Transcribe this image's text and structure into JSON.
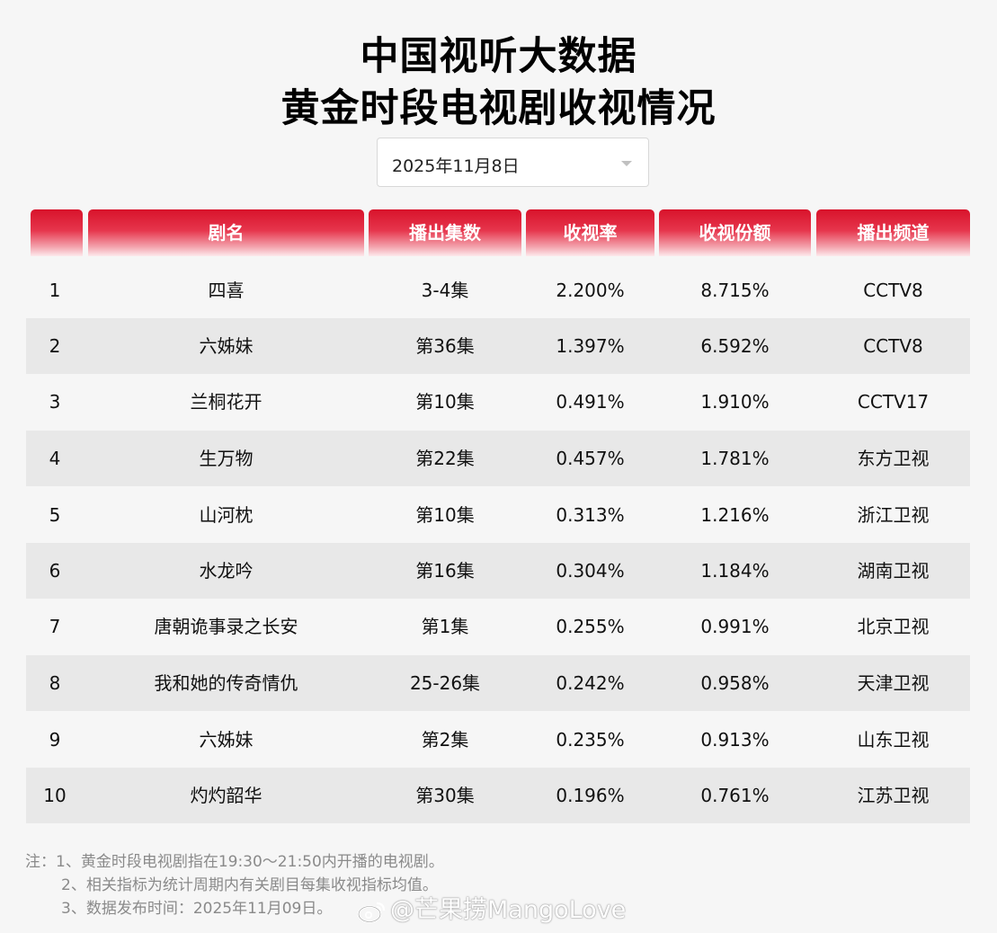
{
  "title": {
    "line1": "中国视听大数据",
    "line2": "黄金时段电视剧收视情况"
  },
  "date_select": {
    "value": "2025年11月8日"
  },
  "table": {
    "headers": [
      "",
      "剧名",
      "播出集数",
      "收视率",
      "收视份额",
      "播出频道"
    ],
    "rows": [
      {
        "rank": "1",
        "name": "四喜",
        "episodes": "3-4集",
        "rating": "2.200%",
        "share": "8.715%",
        "channel": "CCTV8"
      },
      {
        "rank": "2",
        "name": "六姊妹",
        "episodes": "第36集",
        "rating": "1.397%",
        "share": "6.592%",
        "channel": "CCTV8"
      },
      {
        "rank": "3",
        "name": "兰桐花开",
        "episodes": "第10集",
        "rating": "0.491%",
        "share": "1.910%",
        "channel": "CCTV17"
      },
      {
        "rank": "4",
        "name": "生万物",
        "episodes": "第22集",
        "rating": "0.457%",
        "share": "1.781%",
        "channel": "东方卫视"
      },
      {
        "rank": "5",
        "name": "山河枕",
        "episodes": "第10集",
        "rating": "0.313%",
        "share": "1.216%",
        "channel": "浙江卫视"
      },
      {
        "rank": "6",
        "name": "水龙吟",
        "episodes": "第16集",
        "rating": "0.304%",
        "share": "1.184%",
        "channel": "湖南卫视"
      },
      {
        "rank": "7",
        "name": "唐朝诡事录之长安",
        "episodes": "第1集",
        "rating": "0.255%",
        "share": "0.991%",
        "channel": "北京卫视"
      },
      {
        "rank": "8",
        "name": "我和她的传奇情仇",
        "episodes": "25-26集",
        "rating": "0.242%",
        "share": "0.958%",
        "channel": "天津卫视"
      },
      {
        "rank": "9",
        "name": "六姊妹",
        "episodes": "第2集",
        "rating": "0.235%",
        "share": "0.913%",
        "channel": "山东卫视"
      },
      {
        "rank": "10",
        "name": "灼灼韶华",
        "episodes": "第30集",
        "rating": "0.196%",
        "share": "0.761%",
        "channel": "江苏卫视"
      }
    ]
  },
  "notes": {
    "n1": "注：1、黄金时段电视剧指在19:30～21:50内开播的电视剧。",
    "n2": "2、相关指标为统计周期内有关剧目每集收视指标均值。",
    "n3": "3、数据发布时间：2025年11月09日。"
  },
  "watermark": {
    "text": "@芒果捞MangoLove",
    "icon": "weibo-logo-icon"
  },
  "colors": {
    "header_red": "#d8132b",
    "row_alt": "#e8e8e8",
    "note_gray": "#8a8a8a"
  }
}
